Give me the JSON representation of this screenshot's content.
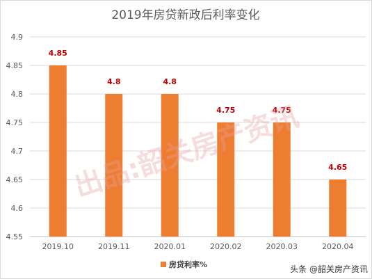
{
  "chart_data": {
    "type": "bar",
    "title": "2019年房贷新政后利率变化",
    "categories": [
      "2019.10",
      "2019.11",
      "2020.01",
      "2020.02",
      "2020.03",
      "2020.04"
    ],
    "series": [
      {
        "name": "房贷利率%",
        "values": [
          4.85,
          4.8,
          4.8,
          4.75,
          4.75,
          4.65
        ]
      }
    ],
    "data_labels": [
      "4.85",
      "4.8",
      "4.8",
      "4.75",
      "4.75",
      "4.65"
    ],
    "y_ticks": [
      "4.55",
      "4.6",
      "4.65",
      "4.7",
      "4.75",
      "4.8",
      "4.85",
      "4.9"
    ],
    "ylim": [
      4.55,
      4.9
    ],
    "grid": true,
    "legend_position": "bottom",
    "bar_color": "#ED7D31",
    "data_label_color": "#C00000"
  },
  "watermark": "出品:韶关房产资讯",
  "footer": {
    "text": "头条 @韶关房产资讯"
  }
}
